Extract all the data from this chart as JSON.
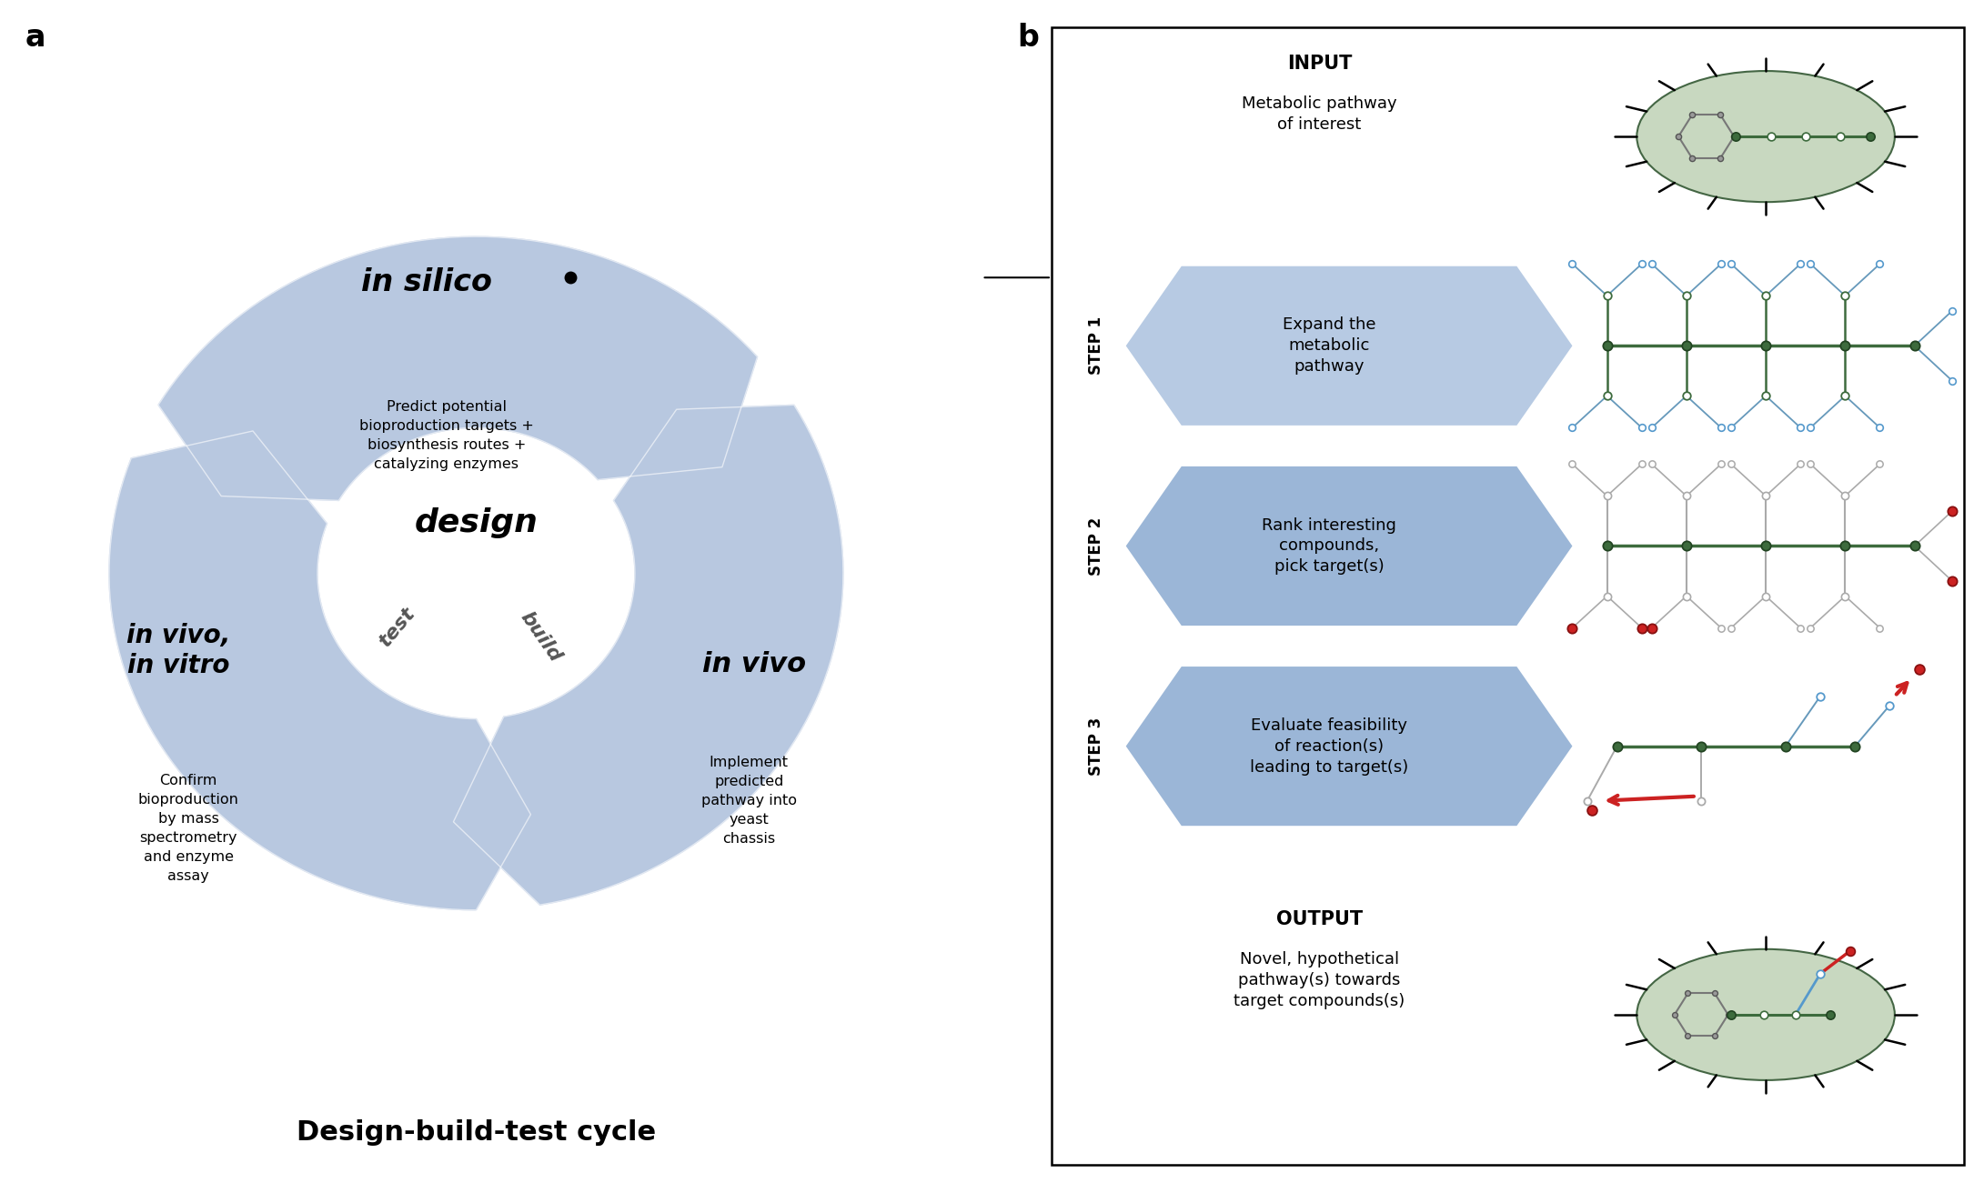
{
  "panel_a_label": "a",
  "panel_b_label": "b",
  "wheel_color": "#b8c8e0",
  "wheel_inner_gap_color": "#d8e4f0",
  "center_labels": [
    "design",
    "build",
    "test"
  ],
  "section_titles": [
    "in silico",
    "in vivo",
    "in vivo,\nin vitro"
  ],
  "section_subtexts": [
    "Predict potential\nbioproduction targets +\nbiosynthesis routes +\ncatalyzing enzymes",
    "Implement\npredicted\npathway into\nyeast\nchassis",
    "Confirm\nbioproduction\nby mass\nspectrometry\nand enzyme\nassay"
  ],
  "bottom_label": "Design-build-test cycle",
  "input_label": "INPUT",
  "input_sublabel": "Metabolic pathway\nof interest",
  "output_label": "OUTPUT",
  "output_sublabel": "Novel, hypothetical\npathway(s) towards\ntarget compounds(s)",
  "step_labels": [
    "STEP 1",
    "STEP 2",
    "STEP 3"
  ],
  "step_texts": [
    "Expand the\nmetabolic\npathway",
    "Rank interesting\ncompounds,\npick target(s)",
    "Evaluate feasibility\nof reaction(s)\nleading to target(s)"
  ],
  "chevron_color_1": "#a8bdd8",
  "chevron_color_2": "#8aaad0",
  "dark_green": "#3d6b3d",
  "blue_node_color": "#5599cc",
  "red_node_color": "#cc2222",
  "gray_color": "#aaaaaa",
  "bacterium_fill": "#c8d8c0",
  "bacterium_edge": "#556655"
}
